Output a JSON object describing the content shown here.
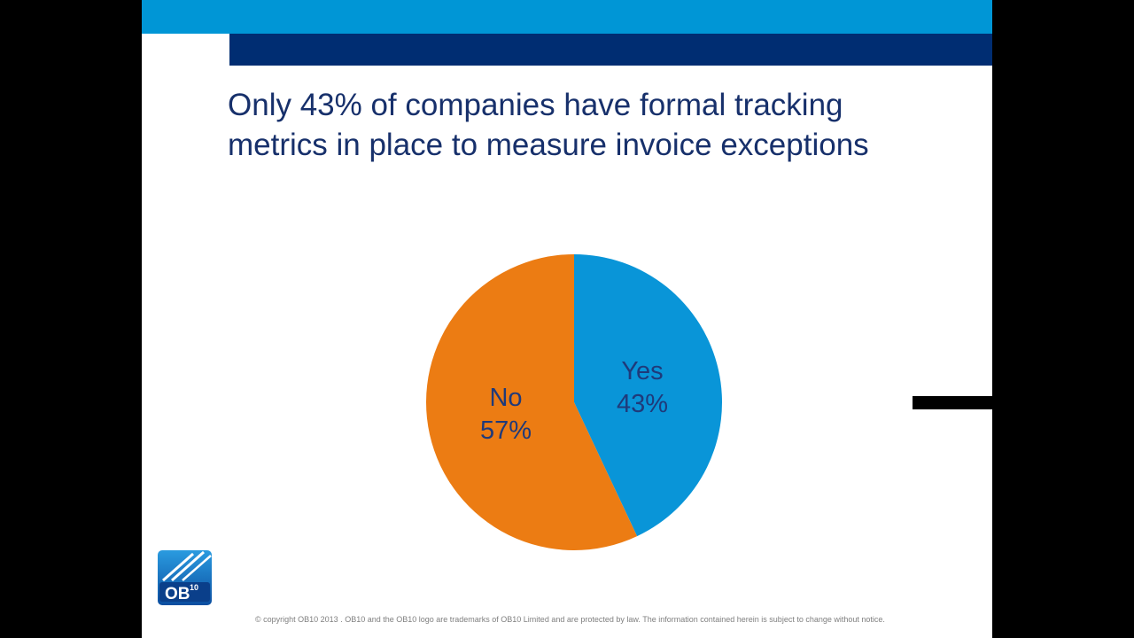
{
  "colors": {
    "top_bar": "#0096d6",
    "navy_bar": "#002d72",
    "title": "#17306b",
    "yes_slice": "#0995d8",
    "no_slice": "#ec7c13",
    "label": "#1f3a7a"
  },
  "title_lines": [
    "Only 43% of companies have formal tracking",
    "metrics in place to measure invoice exceptions"
  ],
  "chart_data": {
    "type": "pie",
    "slices": [
      {
        "label": "Yes",
        "value": 43,
        "value_label": "43%"
      },
      {
        "label": "No",
        "value": 57,
        "value_label": "57%"
      }
    ]
  },
  "logo": {
    "text": "OB",
    "superscript": "10",
    "icon": "ob10-logo-icon"
  },
  "footer_text": "© copyright OB10 2013 . OB10 and the OB10 logo are trademarks of OB10 Limited and are protected by law. The information contained herein is subject to change without notice."
}
